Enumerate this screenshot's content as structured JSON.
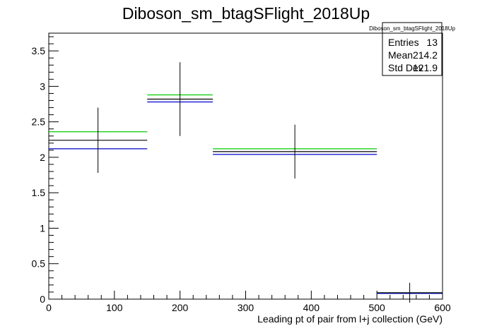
{
  "chart_data": {
    "type": "histogram",
    "title": "Diboson_sm_btagSFlight_2018Up",
    "xlabel": "Leading pt of pair from l+j collection (GeV)",
    "ylabel": "",
    "xlim": [
      0,
      600
    ],
    "ylim": [
      0,
      3.75
    ],
    "x_ticks": [
      0,
      100,
      200,
      300,
      400,
      500,
      600
    ],
    "x_tick_labels": [
      "0",
      "100",
      "200",
      "300",
      "400",
      "500",
      "600"
    ],
    "y_ticks": [
      0,
      0.5,
      1,
      1.5,
      2,
      2.5,
      3,
      3.5
    ],
    "y_tick_labels": [
      "0",
      "0.5",
      "1",
      "1.5",
      "2",
      "2.5",
      "3",
      "3.5"
    ],
    "grid": false,
    "bins": [
      {
        "xlow": 0,
        "xhigh": 150,
        "center": 75
      },
      {
        "xlow": 150,
        "xhigh": 250,
        "center": 200
      },
      {
        "xlow": 250,
        "xhigh": 500,
        "center": 375
      },
      {
        "xlow": 500,
        "xhigh": 600,
        "center": 550
      }
    ],
    "series": [
      {
        "color": "#00cc00",
        "values": [
          2.36,
          2.88,
          2.12,
          0.09
        ],
        "draw_errors": false
      },
      {
        "color": "#0000cc",
        "values": [
          2.12,
          2.78,
          2.04,
          0.08
        ],
        "draw_errors": false
      },
      {
        "color": "#000000",
        "values": [
          2.24,
          2.82,
          2.08,
          0.09
        ],
        "errors": [
          0.46,
          0.52,
          0.38,
          0.14
        ],
        "draw_errors": true
      }
    ],
    "stats_box": {
      "title": "Diboson_sm_btagSFlight_2018Up",
      "position": "top-right",
      "rows": [
        {
          "label": "Entries",
          "value": "13"
        },
        {
          "label": "Mean",
          "value": "214.2"
        },
        {
          "label": "Std Dev",
          "value": "121.9"
        }
      ]
    }
  }
}
